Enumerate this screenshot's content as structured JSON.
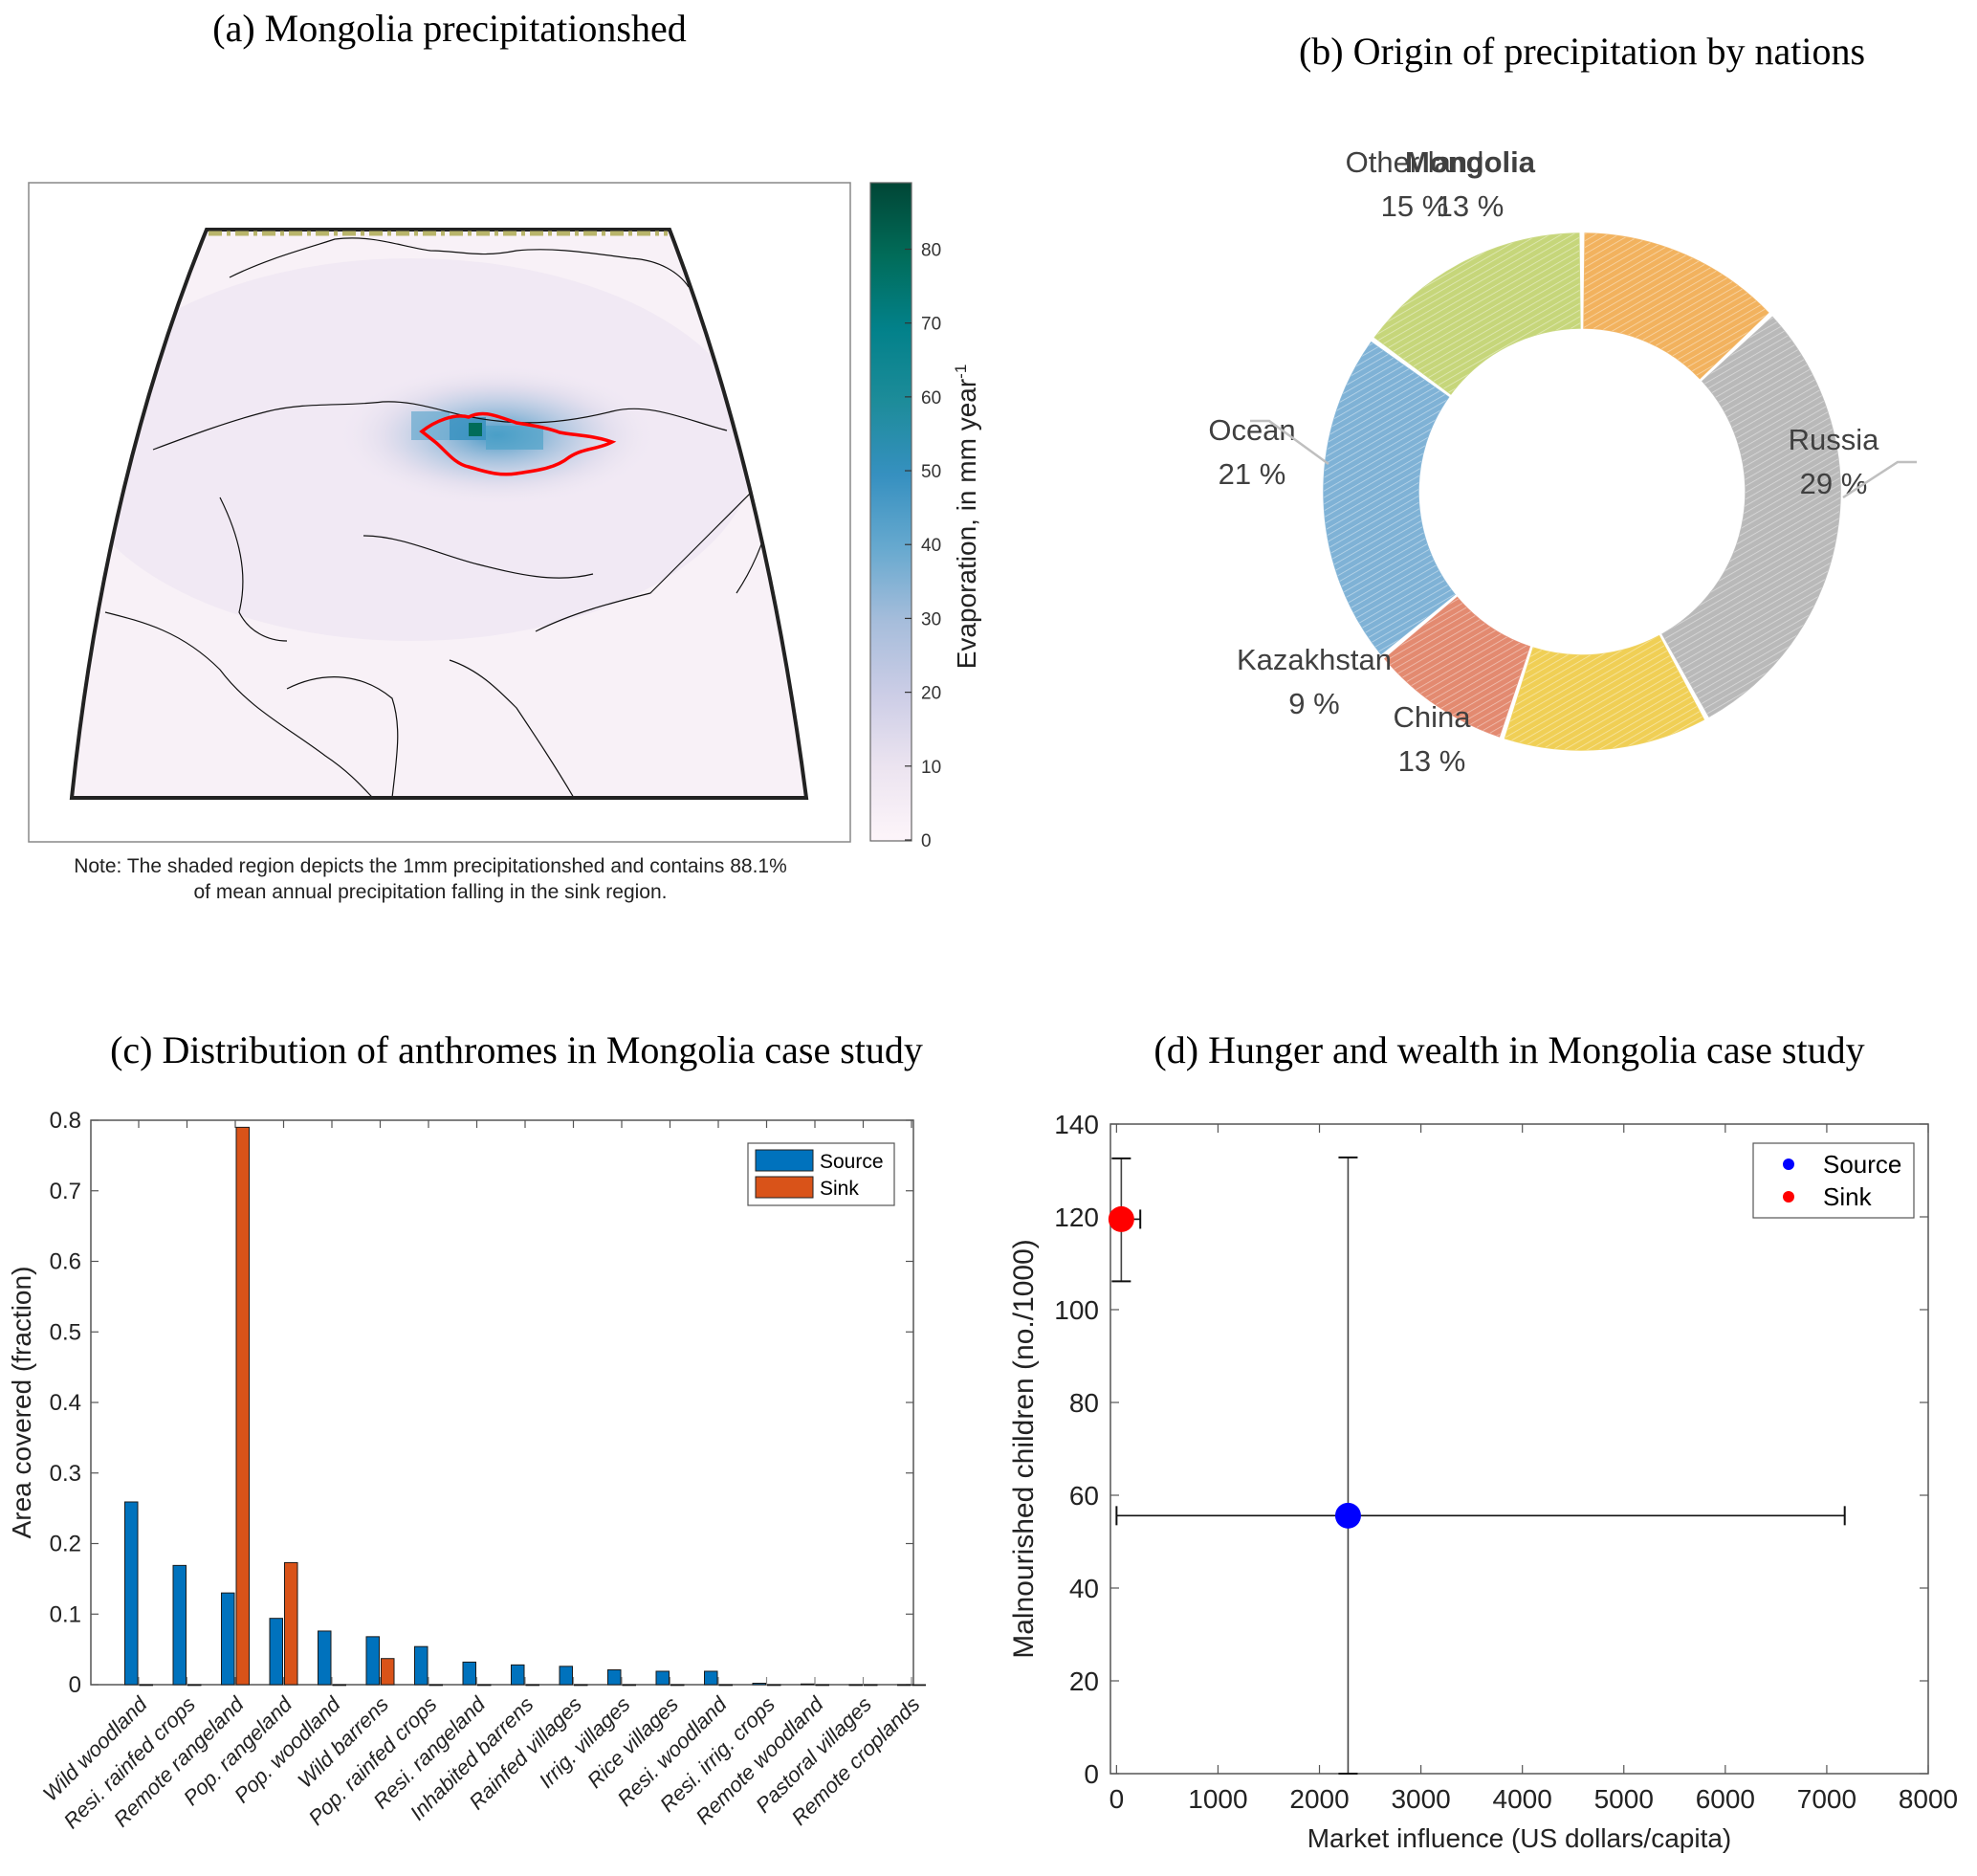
{
  "panels": {
    "a": {
      "title": "(a) Mongolia precipitationshed",
      "note_line1": "Note: The shaded region depicts the 1mm precipitationshed  and contains 88.1%",
      "note_line2": "of mean annual precipitation falling in the sink region.",
      "colorbar": {
        "label": "Evaporation, in mm year",
        "label_superscript": "-1",
        "ticks": [
          "0",
          "10",
          "20",
          "30",
          "40",
          "50",
          "60",
          "70",
          "80"
        ],
        "range": [
          0,
          89
        ],
        "colors": [
          "#fdf5fa",
          "#ece4f0",
          "#cccde6",
          "#a6bddb",
          "#67a9cf",
          "#3690c0",
          "#1d8c9a",
          "#02818a",
          "#016c59",
          "#014636"
        ]
      },
      "map_description": "Equidistant map of Eurasia showing evaporation sources for Mongolian precipitation; Mongolia outlined in red",
      "sink_outline_color": "#ff0000"
    },
    "b": {
      "title": "(b) Origin of precipitation by nations"
    },
    "c": {
      "title": "(c) Distribution of anthromes in Mongolia case study"
    },
    "d": {
      "title": "(d) Hunger and wealth in Mongolia case study"
    }
  },
  "chart_data": [
    {
      "id": "b",
      "type": "pie",
      "variant": "donut",
      "title": "(b) Origin of precipitation by nations",
      "slices": [
        {
          "label": "Mongolia",
          "value": 13,
          "display": "13 %",
          "color": "#f2b25e",
          "bold": true
        },
        {
          "label": "Russia",
          "value": 29,
          "display": "29 %",
          "color": "#b9b9b9",
          "bold": false
        },
        {
          "label": "China",
          "value": 13,
          "display": "13 %",
          "color": "#f0cf55",
          "bold": false
        },
        {
          "label": "Kazakhstan",
          "value": 9,
          "display": "9 %",
          "color": "#e38a70",
          "bold": false
        },
        {
          "label": "Ocean",
          "value": 21,
          "display": "21 %",
          "color": "#7fb2d6",
          "bold": false
        },
        {
          "label": "Other land",
          "value": 15,
          "display": "15 %",
          "color": "#c6d67a",
          "bold": false
        }
      ],
      "start": "top, clockwise"
    },
    {
      "id": "c",
      "type": "bar",
      "title": "(c) Distribution of anthromes in Mongolia case study",
      "xlabel": "",
      "ylabel": "Area covered (fraction)",
      "ylim": [
        0,
        0.8
      ],
      "yticks": [
        "0",
        "0.1",
        "0.2",
        "0.3",
        "0.4",
        "0.5",
        "0.6",
        "0.7",
        "0.8"
      ],
      "categories": [
        "Wild woodland",
        "Resi. rainfed crops",
        "Remote rangeland",
        "Pop. rangeland",
        "Pop. woodland",
        "Wild barrens",
        "Pop. rainfed crops",
        "Resi. rangeland",
        "Inhabited barrens",
        "Rainfed villages",
        "Irrig.  villages",
        "Rice villages",
        "Resi. woodland",
        "Resi. irrig. crops",
        "Remote woodland",
        "Pastoral villages",
        "Remote croplands"
      ],
      "series": [
        {
          "name": "Source",
          "color": "#0072bd",
          "values": [
            0.259,
            0.169,
            0.13,
            0.094,
            0.076,
            0.068,
            0.054,
            0.032,
            0.028,
            0.026,
            0.021,
            0.019,
            0.019,
            0.002,
            0.001,
            0.0,
            0.0
          ]
        },
        {
          "name": "Sink",
          "color": "#d95319",
          "values": [
            0.0,
            0.0,
            0.79,
            0.173,
            0.0,
            0.037,
            0.0,
            0.0,
            0.0,
            0.0,
            0.0,
            0.0,
            0.0,
            0.0,
            0.0,
            0.0,
            0.0
          ]
        }
      ],
      "legend": {
        "position": "top-right",
        "entries": [
          "Source",
          "Sink"
        ]
      },
      "grid": false
    },
    {
      "id": "d",
      "type": "scatter",
      "title": "(d) Hunger and wealth in Mongolia case study",
      "xlabel": "Market influence (US dollars/capita)",
      "ylabel": "Malnourished children (no./1000)",
      "xlim": [
        -60,
        8000
      ],
      "ylim": [
        0,
        140
      ],
      "xticks": [
        "0",
        "1000",
        "2000",
        "3000",
        "4000",
        "5000",
        "6000",
        "7000",
        "8000"
      ],
      "yticks": [
        "0",
        "20",
        "40",
        "60",
        "80",
        "100",
        "120",
        "140"
      ],
      "series": [
        {
          "name": "Source",
          "color": "#0000ff",
          "x": 2282,
          "y": 55.6,
          "x_err": [
            0,
            7177
          ],
          "y_err": [
            0,
            132.8
          ]
        },
        {
          "name": "Sink",
          "color": "#ff0000",
          "x": 47,
          "y": 119.5,
          "x_err": [
            47,
            234
          ],
          "y_err": [
            106.1,
            132.6
          ]
        }
      ],
      "legend": {
        "position": "top-right",
        "entries": [
          "Source",
          "Sink"
        ]
      },
      "grid": false
    }
  ]
}
